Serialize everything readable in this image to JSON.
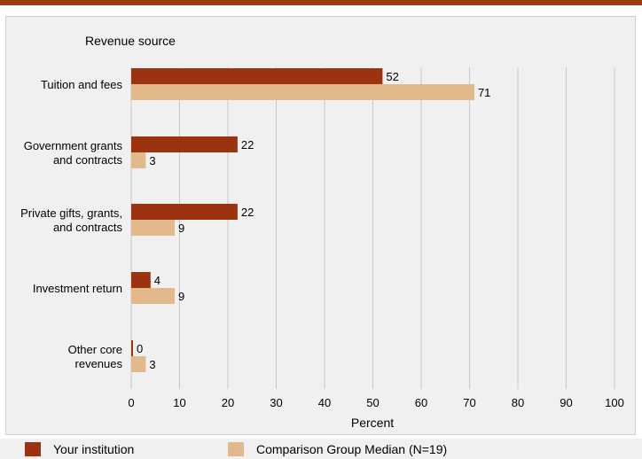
{
  "colors": {
    "series1": "#9c3310",
    "series2": "#e2b98a",
    "grid": "#c7c7c7",
    "header_rule": "#9c3a13"
  },
  "chart_data": {
    "type": "bar",
    "orientation": "horizontal",
    "title": "Revenue source",
    "xlabel": "Percent",
    "ylabel": "",
    "xlim": [
      0,
      100
    ],
    "xticks": [
      "0",
      "10",
      "20",
      "30",
      "40",
      "50",
      "60",
      "70",
      "80",
      "90",
      "100"
    ],
    "grid": true,
    "legend_position": "bottom",
    "categories": [
      [
        "Tuition and fees"
      ],
      [
        "Government grants",
        "and contracts"
      ],
      [
        "Private gifts, grants,",
        "and contracts"
      ],
      [
        "Investment return"
      ],
      [
        "Other core",
        "revenues"
      ]
    ],
    "series": [
      {
        "name": "Your institution",
        "values": [
          52,
          22,
          22,
          4,
          0
        ]
      },
      {
        "name": "Comparison Group Median (N=19)",
        "values": [
          71,
          3,
          9,
          9,
          3
        ]
      }
    ]
  }
}
